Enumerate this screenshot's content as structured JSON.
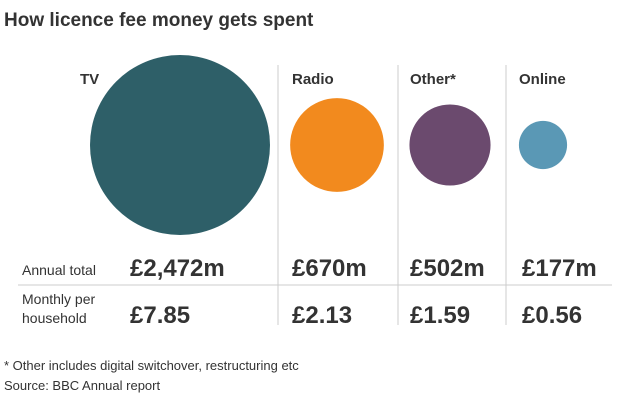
{
  "chart_data": {
    "type": "bubble",
    "title": "How licence fee money gets spent",
    "categories": [
      "TV",
      "Radio",
      "Other*",
      "Online"
    ],
    "colors": [
      "#2e5f68",
      "#f28a1e",
      "#6b4a6e",
      "#5a98b5"
    ],
    "series": [
      {
        "name": "Annual total",
        "values": [
          2472,
          670,
          502,
          177
        ],
        "value_labels": [
          "£2,472m",
          "£670m",
          "£502m",
          "£177m"
        ]
      },
      {
        "name": "Monthly per household",
        "values": [
          7.85,
          2.13,
          1.59,
          0.56
        ],
        "value_labels": [
          "£7.85",
          "£2.13",
          "£1.59",
          "£0.56"
        ]
      }
    ],
    "note": "* Other includes digital switchover, restructuring etc",
    "source": "Source: BBC Annual report"
  }
}
